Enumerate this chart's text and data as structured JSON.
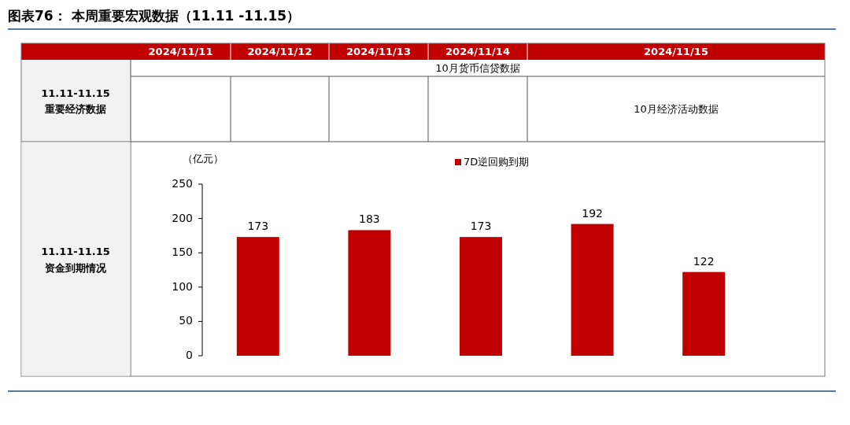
{
  "chart_data": [
    {
      "type": "other",
      "title": "图表76：  本周重要宏观数据（11.11 -11.15）",
      "categories": [
        "2024/11/11",
        "2024/11/12",
        "2024/11/13",
        "2024/11/14",
        "2024/11/15"
      ],
      "annotations": [
        "11.11-11.15",
        "重要经济数据",
        "10月货币信贷数据",
        "10月经济活动数据"
      ]
    },
    {
      "type": "bar",
      "categories": [
        null,
        null,
        null,
        null,
        null
      ],
      "ylabel": "（亿元）",
      "ylim": [
        0,
        250
      ],
      "yticks": [
        0,
        50,
        100,
        150,
        200,
        250
      ],
      "legend": "top",
      "data_labels": true,
      "annotations": [
        "11.11-11.15",
        "资金到期情况"
      ],
      "series": [
        {
          "name": "7D逆回购到期",
          "color": "#c00000",
          "values": [
            173,
            183,
            173,
            192,
            122
          ]
        }
      ]
    }
  ]
}
